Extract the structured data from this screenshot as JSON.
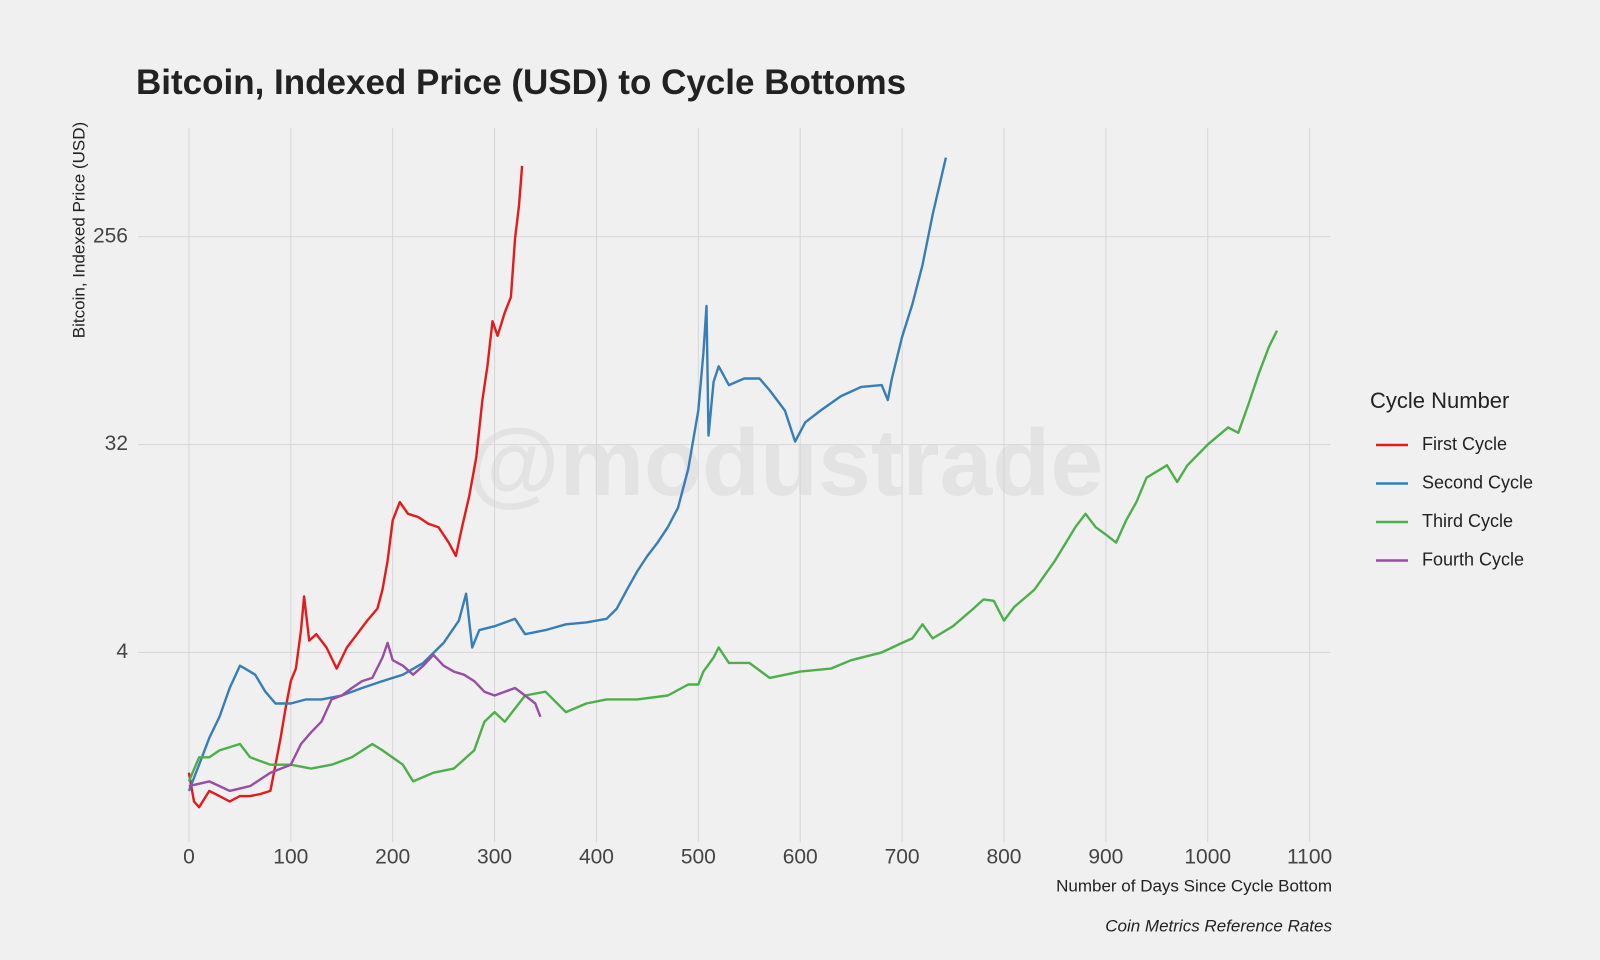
{
  "chart_data": {
    "type": "line",
    "title": "Bitcoin, Indexed Price (USD) to Cycle Bottoms",
    "y_label": "Bitcoin, Indexed Price (USD)",
    "x_label": "Number of Days Since Cycle Bottom",
    "caption": "Coin Metrics Reference Rates",
    "watermark": "@modustrade",
    "legend_title": "Cycle Number",
    "legend_position": "right",
    "log_scale": true,
    "grid": true,
    "xlim": [
      -50,
      1120
    ],
    "xticks": [
      0,
      100,
      200,
      300,
      400,
      500,
      600,
      700,
      800,
      900,
      1000,
      1100
    ],
    "ylim": [
      0.6,
      760
    ],
    "yticks": [
      4,
      32,
      256
    ],
    "series": [
      {
        "name": "First Cycle",
        "color": "#e41a1c",
        "x": [
          0,
          5,
          10,
          20,
          30,
          40,
          50,
          60,
          70,
          80,
          85,
          90,
          95,
          100,
          105,
          110,
          113,
          118,
          125,
          135,
          145,
          155,
          165,
          175,
          185,
          190,
          195,
          200,
          207,
          215,
          225,
          235,
          245,
          255,
          262,
          268,
          275,
          282,
          288,
          293,
          298,
          303,
          310,
          316,
          320,
          324,
          327
        ],
        "values": [
          1.2,
          0.9,
          0.85,
          1.0,
          0.95,
          0.9,
          0.95,
          0.95,
          0.97,
          1.0,
          1.3,
          1.7,
          2.3,
          3.0,
          3.4,
          5.0,
          7.0,
          4.5,
          4.8,
          4.2,
          3.4,
          4.2,
          4.8,
          5.5,
          6.2,
          7.5,
          10,
          15,
          18,
          16,
          15.5,
          14.5,
          14,
          12,
          10.5,
          14,
          19,
          28,
          50,
          70,
          110,
          95,
          120,
          140,
          250,
          350,
          520
        ]
      },
      {
        "name": "Second Cycle",
        "color": "#377eb8",
        "x": [
          0,
          10,
          20,
          30,
          40,
          50,
          55,
          65,
          75,
          85,
          100,
          115,
          130,
          150,
          170,
          190,
          210,
          230,
          250,
          265,
          272,
          278,
          285,
          300,
          320,
          330,
          350,
          370,
          390,
          410,
          420,
          430,
          440,
          450,
          460,
          470,
          480,
          490,
          500,
          505,
          508,
          510,
          515,
          520,
          530,
          545,
          560,
          570,
          585,
          595,
          605,
          620,
          640,
          660,
          680,
          686,
          690,
          700,
          710,
          720,
          730,
          743
        ],
        "values": [
          1.0,
          1.3,
          1.7,
          2.1,
          2.8,
          3.5,
          3.4,
          3.2,
          2.7,
          2.4,
          2.4,
          2.5,
          2.5,
          2.6,
          2.8,
          3.0,
          3.2,
          3.6,
          4.4,
          5.5,
          7.2,
          4.2,
          5.0,
          5.2,
          5.6,
          4.8,
          5.0,
          5.3,
          5.4,
          5.6,
          6.2,
          7.5,
          9,
          10.5,
          12,
          14,
          17,
          25,
          45,
          80,
          128,
          35,
          60,
          70,
          58,
          62,
          62,
          55,
          45,
          33,
          40,
          45,
          52,
          57,
          58,
          50,
          62,
          94,
          130,
          193,
          320,
          565
        ]
      },
      {
        "name": "Third Cycle",
        "color": "#4daf4a",
        "x": [
          0,
          10,
          20,
          30,
          50,
          60,
          80,
          100,
          120,
          140,
          160,
          180,
          190,
          210,
          220,
          240,
          260,
          280,
          290,
          300,
          310,
          330,
          350,
          370,
          390,
          410,
          440,
          470,
          490,
          500,
          505,
          515,
          520,
          530,
          550,
          570,
          600,
          630,
          650,
          680,
          700,
          710,
          720,
          730,
          750,
          770,
          780,
          790,
          800,
          810,
          830,
          850,
          870,
          880,
          890,
          900,
          910,
          920,
          930,
          940,
          960,
          970,
          980,
          1000,
          1020,
          1030,
          1040,
          1050,
          1060,
          1068
        ],
        "values": [
          1.1,
          1.4,
          1.4,
          1.5,
          1.6,
          1.4,
          1.3,
          1.3,
          1.25,
          1.3,
          1.4,
          1.6,
          1.5,
          1.3,
          1.1,
          1.2,
          1.25,
          1.5,
          2.0,
          2.2,
          2.0,
          2.6,
          2.7,
          2.2,
          2.4,
          2.5,
          2.5,
          2.6,
          2.9,
          2.9,
          3.3,
          3.8,
          4.2,
          3.6,
          3.6,
          3.1,
          3.3,
          3.4,
          3.7,
          4.0,
          4.4,
          4.6,
          5.3,
          4.6,
          5.2,
          6.2,
          6.8,
          6.7,
          5.5,
          6.3,
          7.5,
          10,
          14,
          16,
          14,
          13,
          12,
          15,
          18,
          23,
          26,
          22,
          26,
          32,
          38,
          36,
          48,
          65,
          85,
          100
        ]
      },
      {
        "name": "Fourth Cycle",
        "color": "#984ea3",
        "x": [
          0,
          20,
          40,
          60,
          80,
          100,
          110,
          120,
          130,
          140,
          150,
          160,
          170,
          180,
          190,
          195,
          200,
          210,
          220,
          230,
          240,
          250,
          260,
          270,
          280,
          290,
          300,
          310,
          320,
          330,
          340,
          345
        ],
        "values": [
          1.05,
          1.1,
          1.0,
          1.05,
          1.2,
          1.3,
          1.6,
          1.8,
          2.0,
          2.5,
          2.6,
          2.8,
          3.0,
          3.1,
          3.8,
          4.4,
          3.7,
          3.5,
          3.2,
          3.5,
          3.9,
          3.5,
          3.3,
          3.2,
          3.0,
          2.7,
          2.6,
          2.7,
          2.8,
          2.6,
          2.4,
          2.1
        ]
      }
    ]
  }
}
